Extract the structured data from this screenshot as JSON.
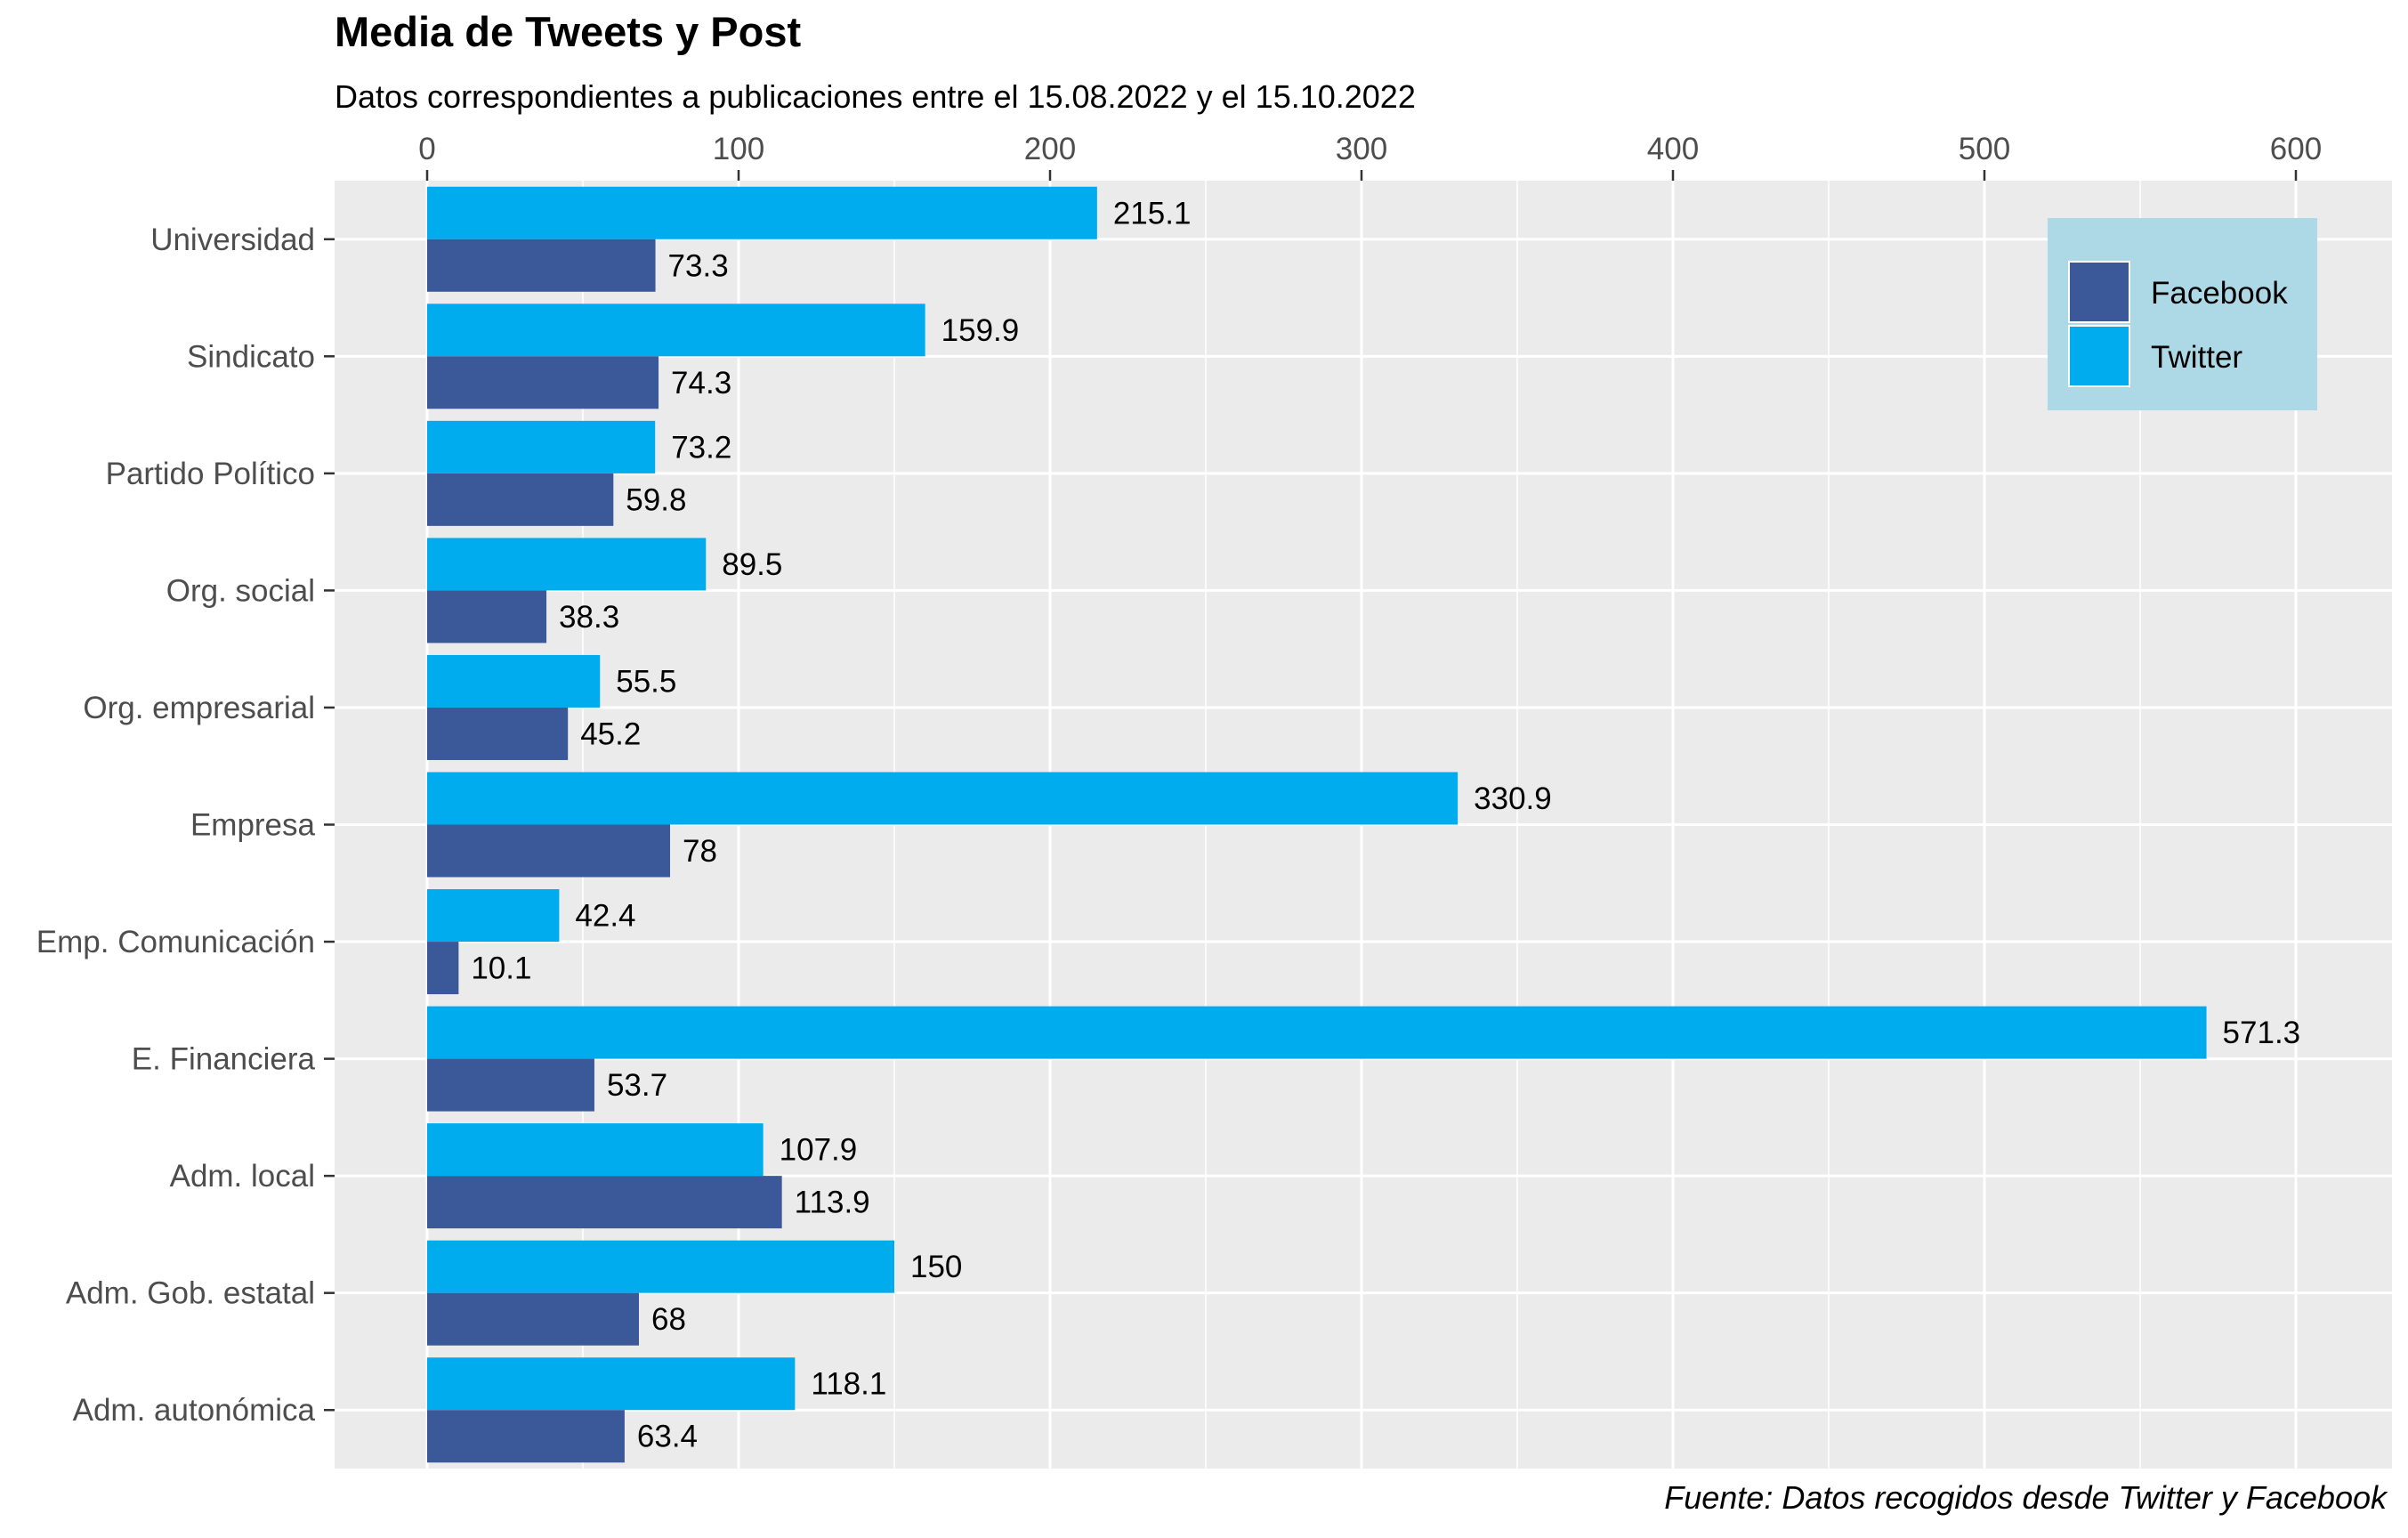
{
  "chart_data": {
    "type": "bar",
    "orientation": "horizontal",
    "title": "Media de Tweets y Post",
    "subtitle": "Datos correspondientes a publicaciones entre el 15.08.2022 y el 15.10.2022",
    "caption": "Fuente: Datos recogidos desde Twitter y Facebook",
    "xlabel": "",
    "ylabel": "",
    "xlim": [
      -30,
      630
    ],
    "x_ticks": [
      0,
      100,
      200,
      300,
      400,
      500,
      600
    ],
    "x_axis_position": "top",
    "grid": true,
    "legend_position": "top-right",
    "categories": [
      "Universidad",
      "Sindicato",
      "Partido Político",
      "Org. social",
      "Org. empresarial",
      "Empresa",
      "Emp. Comunicación",
      "E. Financiera",
      "Adm. local",
      "Adm. Gob. estatal",
      "Adm. autonómica"
    ],
    "series": [
      {
        "name": "Facebook",
        "color": "#3B5998",
        "values": [
          73.3,
          74.3,
          59.8,
          38.3,
          45.2,
          78,
          10.1,
          53.7,
          113.9,
          68,
          63.4
        ],
        "labels": [
          "73.3",
          "74.3",
          "59.8",
          "38.3",
          "45.2",
          "78",
          "10.1",
          "53.7",
          "113.9",
          "68",
          "63.4"
        ]
      },
      {
        "name": "Twitter",
        "color": "#00ACED",
        "values": [
          215.1,
          159.9,
          73.2,
          89.5,
          55.5,
          330.9,
          42.4,
          571.3,
          107.9,
          150,
          118.1
        ],
        "labels": [
          "215.1",
          "159.9",
          "73.2",
          "89.5",
          "55.5",
          "330.9",
          "42.4",
          "571.3",
          "107.9",
          "150",
          "118.1"
        ]
      }
    ],
    "colors": {
      "panel_background": "#EBEBEB",
      "grid": "#FFFFFF",
      "legend_background": "#ADD8E6",
      "axis_text": "#4D4D4D"
    }
  }
}
